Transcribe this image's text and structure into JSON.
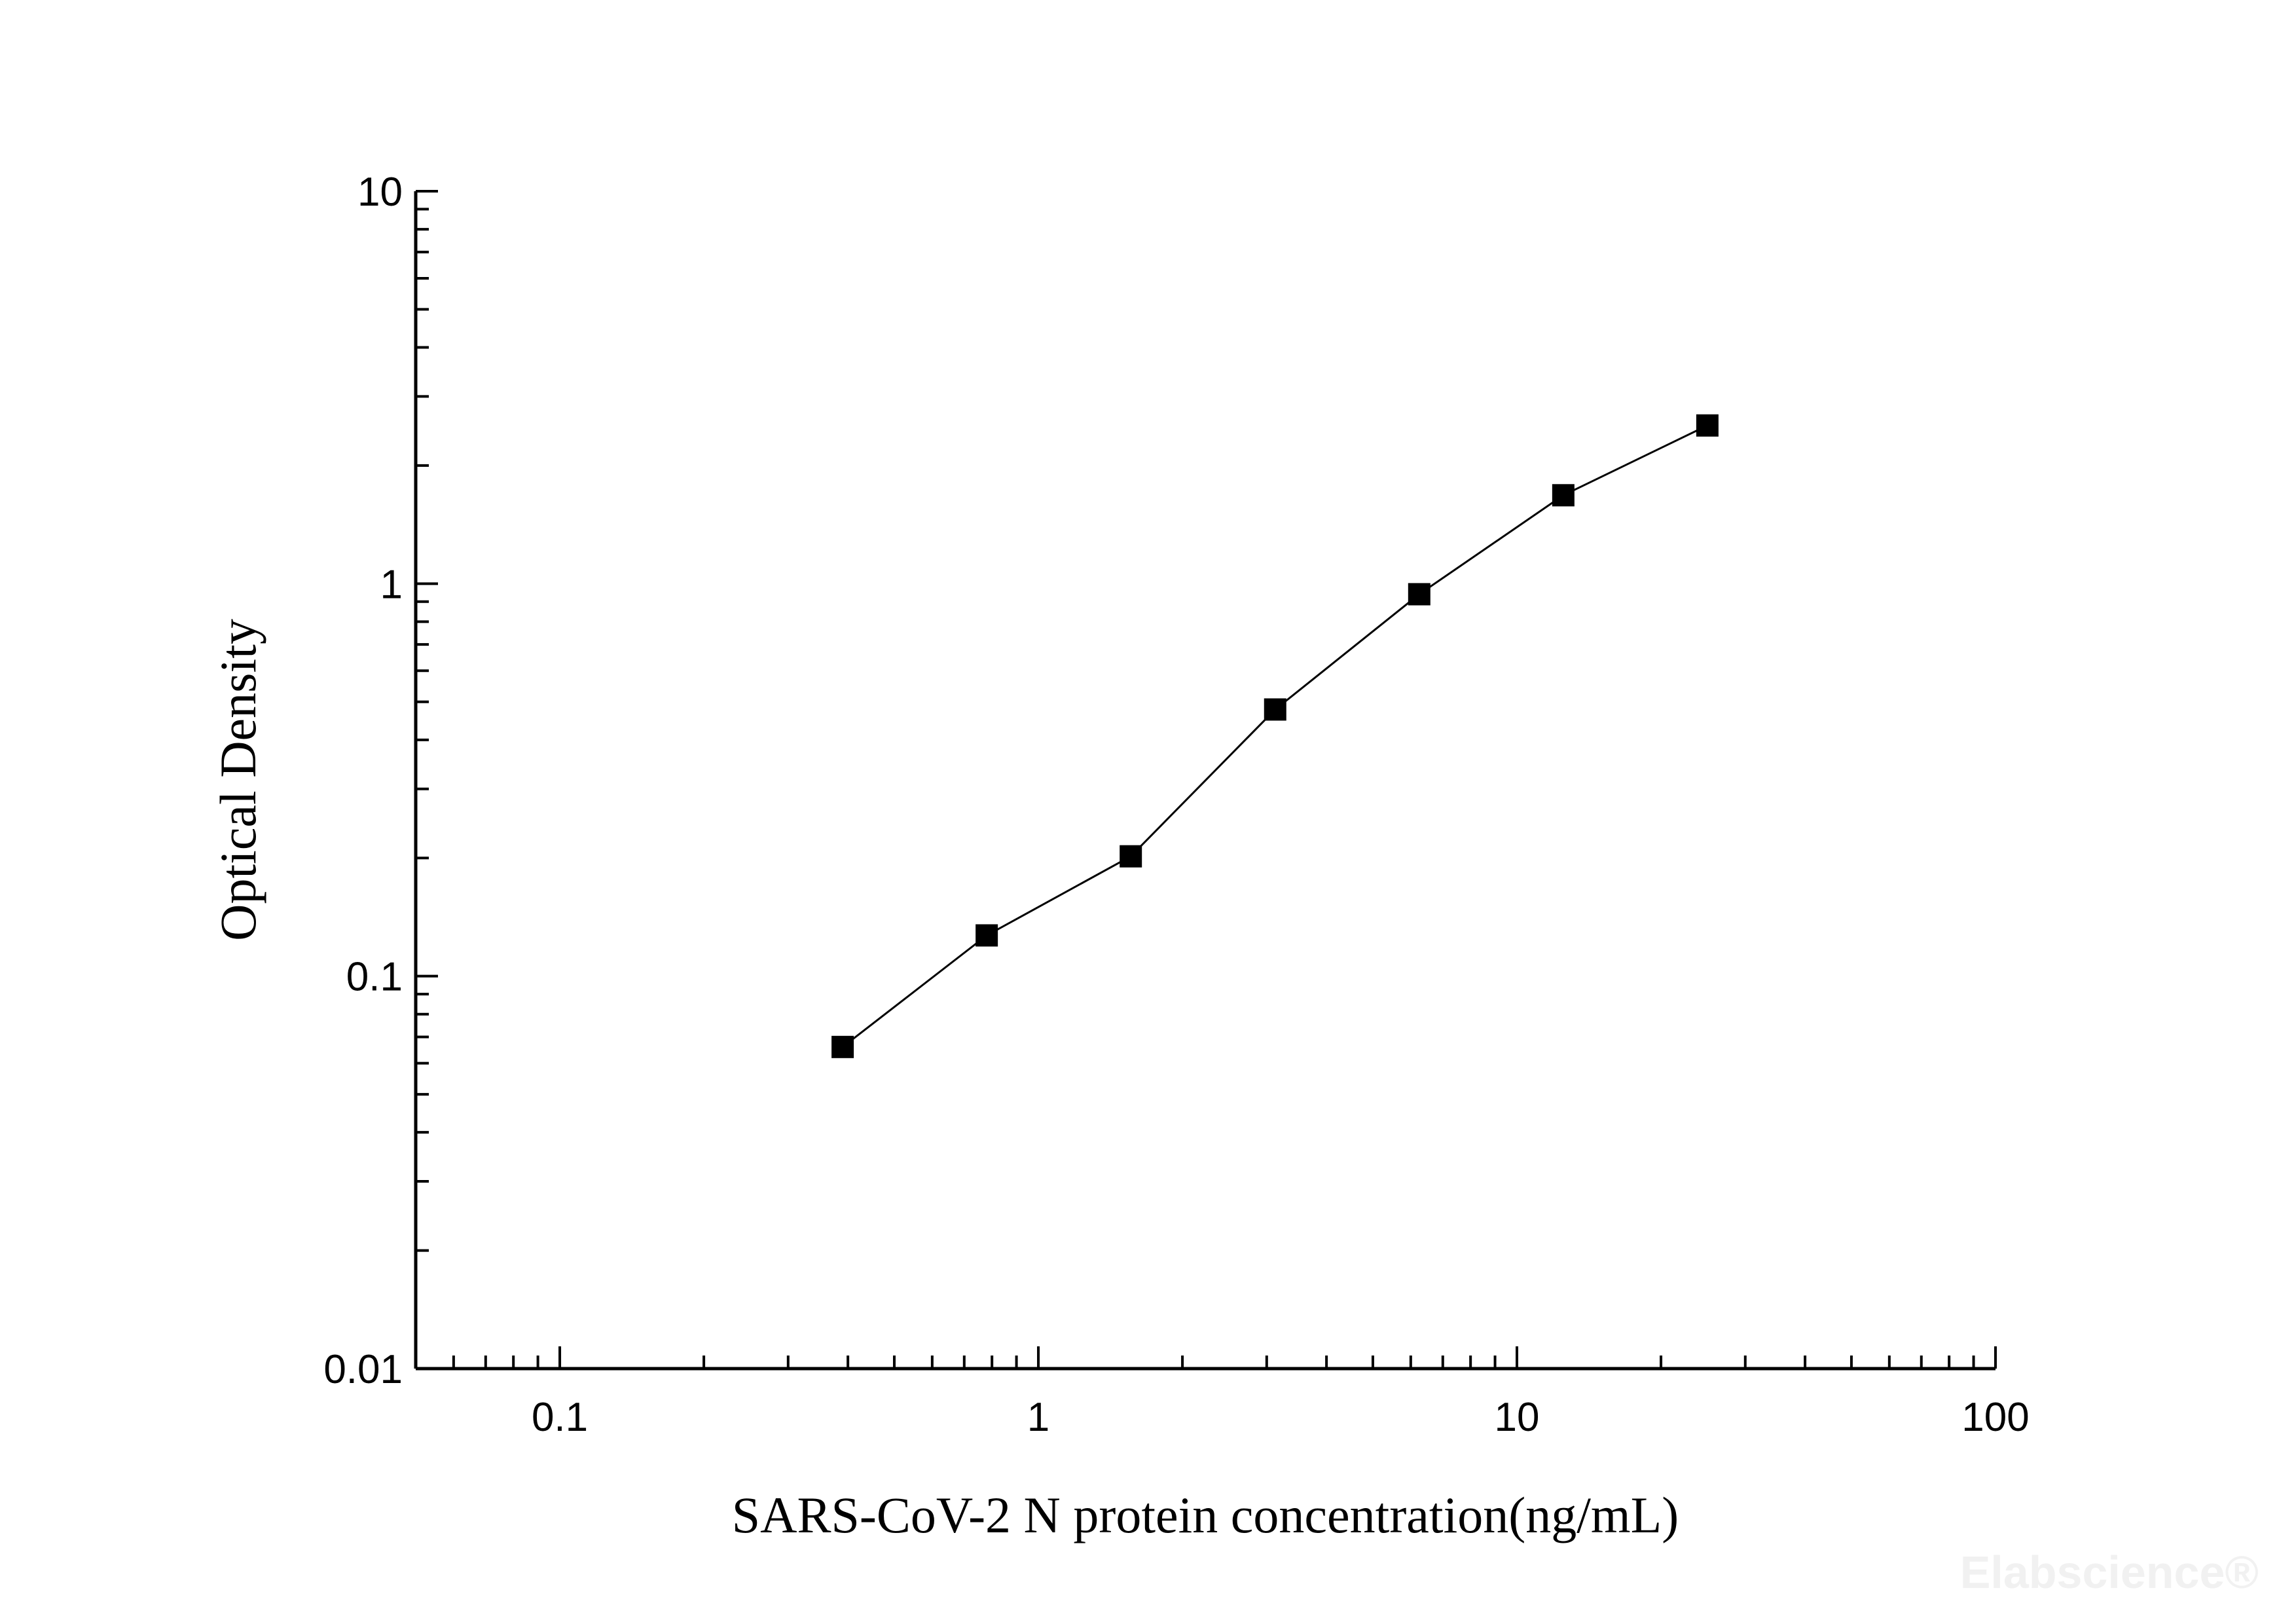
{
  "chart_data": {
    "type": "line",
    "title": "",
    "xlabel": "SARS-CoV-2 N protein concentration(ng/mL)",
    "ylabel": "Optical Density",
    "x_scale": "log",
    "y_scale": "log",
    "xlim": [
      0.05,
      100
    ],
    "ylim": [
      0.01,
      10
    ],
    "x_ticks": [
      {
        "v": 0.1,
        "label": "0.1"
      },
      {
        "v": 1,
        "label": "1"
      },
      {
        "v": 10,
        "label": "10"
      },
      {
        "v": 100,
        "label": "100"
      }
    ],
    "y_ticks": [
      {
        "v": 0.01,
        "label": "0.01"
      },
      {
        "v": 0.1,
        "label": "0.1"
      },
      {
        "v": 1,
        "label": "1"
      },
      {
        "v": 10,
        "label": "10"
      }
    ],
    "grid": false,
    "marker": "square",
    "color": "#000000",
    "series": [
      {
        "x": [
          0.39,
          0.78,
          1.56,
          3.125,
          6.25,
          12.5,
          25
        ],
        "y": [
          0.066,
          0.127,
          0.202,
          0.478,
          0.94,
          1.68,
          2.53
        ]
      }
    ]
  },
  "watermark": "Elabscience®"
}
